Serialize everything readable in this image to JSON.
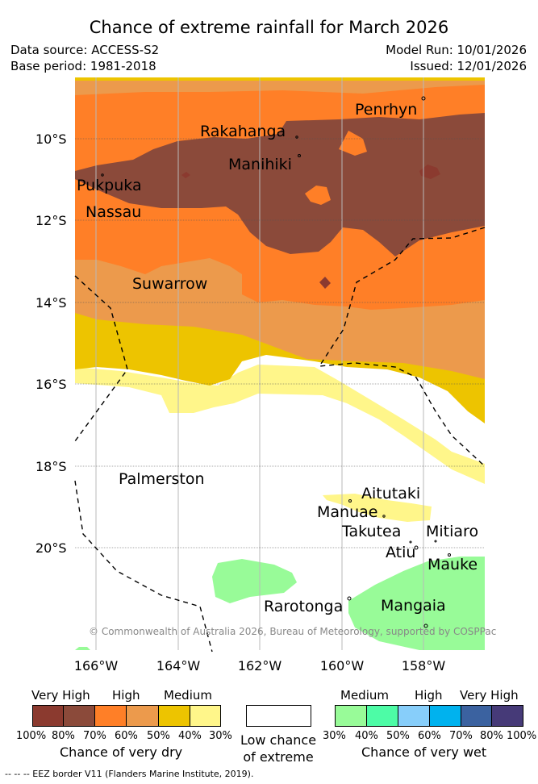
{
  "header": {
    "title": "Chance of extreme rainfall for March 2026",
    "data_source": "Data source: ACCESS-S2",
    "base_period": "Base period: 1981-2018",
    "model_run": "Model Run: 10/01/2026",
    "issued": "Issued: 12/01/2026"
  },
  "map": {
    "lat_labels": [
      "10°S",
      "12°S",
      "14°S",
      "16°S",
      "18°S",
      "20°S"
    ],
    "lon_labels": [
      "166°W",
      "164°W",
      "162°W",
      "160°W",
      "158°W"
    ],
    "islands": [
      "Penrhyn",
      "Rakahanga",
      "Manihiki",
      "Pukpuka",
      "Nassau",
      "Suwarrow",
      "Palmerston",
      "Aitutaki",
      "Manuae",
      "Takutea",
      "Mitiaro",
      "Atiu",
      "Mauke",
      "Rarotonga",
      "Mangaia"
    ],
    "copyright": "© Commonwealth of Australia 2026, Bureau of Meteorology, supported by COSPPac",
    "colors": {
      "dry_very_high_1": "#8b3a2f",
      "dry_very_high_2": "#8b4a3a",
      "dry_high_1": "#ff7f27",
      "dry_high_2": "#ec9a4c",
      "dry_medium_1": "#edc400",
      "dry_medium_2": "#fff68a",
      "low": "#ffffff",
      "wet_medium_1": "#98fb98",
      "wet_medium_2": "#4dfca6",
      "wet_high_1": "#87cefa",
      "wet_high_2": "#00b2ee",
      "wet_very_high_1": "#3b62a0",
      "wet_very_high_2": "#463a78"
    }
  },
  "legend": {
    "dry": {
      "headers": [
        "Very High",
        "High",
        "Medium"
      ],
      "percents": [
        "100%",
        "80%",
        "70%",
        "60%",
        "50%",
        "40%",
        "30%"
      ],
      "caption": "Chance of very dry"
    },
    "low": {
      "caption_line1": "Low chance",
      "caption_line2": "of extreme"
    },
    "wet": {
      "headers": [
        "Medium",
        "High",
        "Very High"
      ],
      "percents": [
        "30%",
        "40%",
        "50%",
        "60%",
        "70%",
        "80%",
        "100%"
      ],
      "caption": "Chance of very wet"
    }
  },
  "footnote": "-- -- -- EEZ border V11 (Flanders Marine Institute, 2019)."
}
